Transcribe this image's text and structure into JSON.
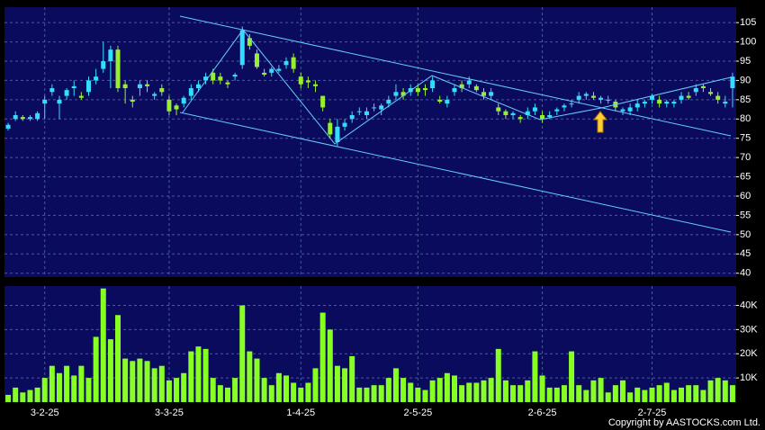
{
  "chart_data": [
    {
      "type": "candlestick",
      "up_color": "#33ddff",
      "down_color": "#99ee33",
      "grid": true,
      "open": [
        77.5,
        80,
        80.5,
        80,
        80,
        84,
        87,
        84,
        86,
        88,
        86,
        87,
        90,
        93,
        95,
        98,
        89,
        85,
        88,
        89,
        86,
        88,
        85,
        83.5,
        84,
        86,
        88,
        90,
        92,
        91,
        89.5,
        91,
        94,
        101,
        97,
        92,
        92,
        92.5,
        94,
        96,
        91,
        90,
        89,
        86,
        79,
        74,
        78,
        80,
        82,
        81,
        83,
        82.5,
        84,
        86,
        87,
        87,
        88,
        88,
        88,
        85,
        84,
        87,
        89,
        89,
        88.5,
        87,
        86,
        83,
        82,
        81,
        80.5,
        81,
        82,
        81,
        80.5,
        82,
        83,
        84,
        85,
        86,
        86,
        85,
        85,
        84.5,
        82,
        82,
        83,
        84,
        85,
        85,
        84,
        84,
        85,
        86,
        87,
        88.5,
        87,
        86,
        84,
        88
      ],
      "high": [
        79,
        82,
        81,
        81,
        82,
        86,
        89,
        86,
        88,
        90,
        87,
        91,
        93,
        100,
        99,
        99,
        90,
        86,
        90,
        90,
        87,
        89,
        86,
        84,
        86,
        89,
        90,
        92,
        93,
        92,
        90,
        92,
        104,
        102,
        98,
        93,
        93.5,
        94,
        96,
        97,
        92,
        91,
        90,
        86,
        80,
        80,
        80,
        82,
        83,
        83,
        84,
        84,
        86,
        89,
        88,
        89,
        89,
        89,
        91,
        86,
        86,
        89,
        90,
        91,
        89,
        88,
        88,
        84,
        82.5,
        82,
        81,
        83,
        84,
        82,
        82,
        83,
        84,
        85,
        87,
        87,
        87,
        86,
        86,
        85,
        83,
        84,
        85,
        85,
        86.5,
        86,
        85,
        85,
        87,
        87,
        89,
        89,
        88,
        87,
        86,
        92
      ],
      "low": [
        77,
        79.5,
        79.5,
        79.5,
        79.5,
        80,
        86,
        80,
        85,
        86,
        85,
        86,
        89,
        92,
        88,
        87,
        84,
        83,
        86,
        87,
        85,
        86,
        81,
        81,
        83,
        85,
        87,
        89,
        89,
        89,
        88,
        90,
        93,
        98,
        93,
        91,
        91,
        92,
        93,
        92,
        88,
        88,
        87,
        82,
        75,
        73,
        77,
        79,
        81,
        80,
        82,
        81,
        83,
        85,
        85,
        86,
        86,
        86,
        87,
        84,
        83,
        86,
        87,
        88,
        87,
        85,
        85,
        81,
        80,
        80,
        79,
        80,
        81,
        79,
        80,
        81,
        82,
        83,
        84,
        85,
        85,
        84,
        84,
        82,
        81,
        81,
        82,
        83,
        84,
        83,
        83,
        83,
        84,
        85,
        86,
        87,
        86,
        84,
        83,
        83
      ],
      "close": [
        78.5,
        81,
        80,
        80.5,
        81.5,
        85,
        88,
        85,
        87.5,
        88.5,
        85.5,
        90,
        91,
        95,
        98,
        88,
        88,
        84.5,
        89,
        88.5,
        86.5,
        87,
        82,
        82.5,
        85.5,
        88,
        89,
        91,
        90,
        90,
        89,
        91.5,
        103,
        99,
        93.5,
        91.5,
        93,
        93,
        95,
        93,
        89,
        89.5,
        88.5,
        83,
        76,
        78,
        79,
        81,
        82,
        82,
        83,
        83.5,
        85,
        87,
        86,
        88,
        87,
        87.5,
        90,
        84.5,
        85,
        88,
        88,
        90,
        87.5,
        86,
        87,
        82,
        81,
        81.5,
        80,
        82,
        83,
        80,
        81,
        82.5,
        83.5,
        84,
        86,
        86.5,
        85.5,
        85.5,
        85,
        83,
        82.5,
        83,
        84,
        84.5,
        86,
        84,
        84.5,
        84.5,
        86,
        85.5,
        88,
        88,
        86.5,
        85,
        84.5,
        91
      ],
      "ylim": [
        39,
        109
      ],
      "yticks": [
        40,
        45,
        50,
        55,
        60,
        65,
        70,
        75,
        80,
        85,
        90,
        95,
        100,
        105
      ]
    },
    {
      "type": "bar",
      "color": "#88ff22",
      "grid": true,
      "categories": [
        null,
        null,
        null,
        null,
        null,
        "3-2-25",
        null,
        null,
        null,
        null,
        null,
        null,
        null,
        null,
        null,
        null,
        null,
        null,
        null,
        null,
        null,
        null,
        "3-3-25",
        null,
        null,
        null,
        null,
        null,
        null,
        null,
        null,
        null,
        null,
        null,
        null,
        null,
        null,
        null,
        null,
        null,
        "1-4-25",
        null,
        null,
        null,
        null,
        null,
        null,
        null,
        null,
        null,
        null,
        null,
        null,
        null,
        null,
        null,
        "2-5-25",
        null,
        null,
        null,
        null,
        null,
        null,
        null,
        null,
        null,
        null,
        null,
        null,
        null,
        null,
        null,
        null,
        "2-6-25",
        null,
        null,
        null,
        null,
        null,
        null,
        null,
        null,
        null,
        null,
        null,
        null,
        null,
        null,
        "2-7-25",
        null,
        null,
        null,
        null,
        null,
        null,
        null,
        null,
        null,
        null,
        null
      ],
      "values": [
        3000,
        6000,
        4000,
        5000,
        6000,
        10000,
        15000,
        12000,
        15000,
        11000,
        15000,
        10000,
        27000,
        47000,
        26000,
        36000,
        18000,
        17000,
        18000,
        17000,
        14000,
        15000,
        9000,
        10000,
        12000,
        21000,
        23000,
        22000,
        10000,
        7000,
        6000,
        10000,
        40000,
        21000,
        18000,
        10000,
        7000,
        12000,
        11000,
        8000,
        6000,
        8000,
        14000,
        37000,
        30000,
        15000,
        14000,
        19000,
        6000,
        6000,
        7000,
        7000,
        10000,
        14000,
        10000,
        8000,
        6000,
        5000,
        9000,
        10000,
        12000,
        11000,
        7000,
        8000,
        8000,
        9000,
        10000,
        22000,
        9000,
        7000,
        7000,
        9000,
        21000,
        11000,
        6000,
        6000,
        7000,
        21000,
        7000,
        5000,
        9000,
        10000,
        4000,
        7000,
        9000,
        4000,
        6000,
        5000,
        6000,
        7000,
        8000,
        5000,
        6000,
        7000,
        7000,
        5000,
        9000,
        10000,
        9000,
        7000
      ],
      "ylim": [
        0,
        48000
      ],
      "yticks": [
        {
          "value": 10000,
          "label": "10K"
        },
        {
          "value": 20000,
          "label": "20K"
        },
        {
          "value": 30000,
          "label": "30K"
        },
        {
          "value": 40000,
          "label": "40K"
        }
      ],
      "note": "Copyright by AASTOCKS.com Ltd."
    }
  ]
}
